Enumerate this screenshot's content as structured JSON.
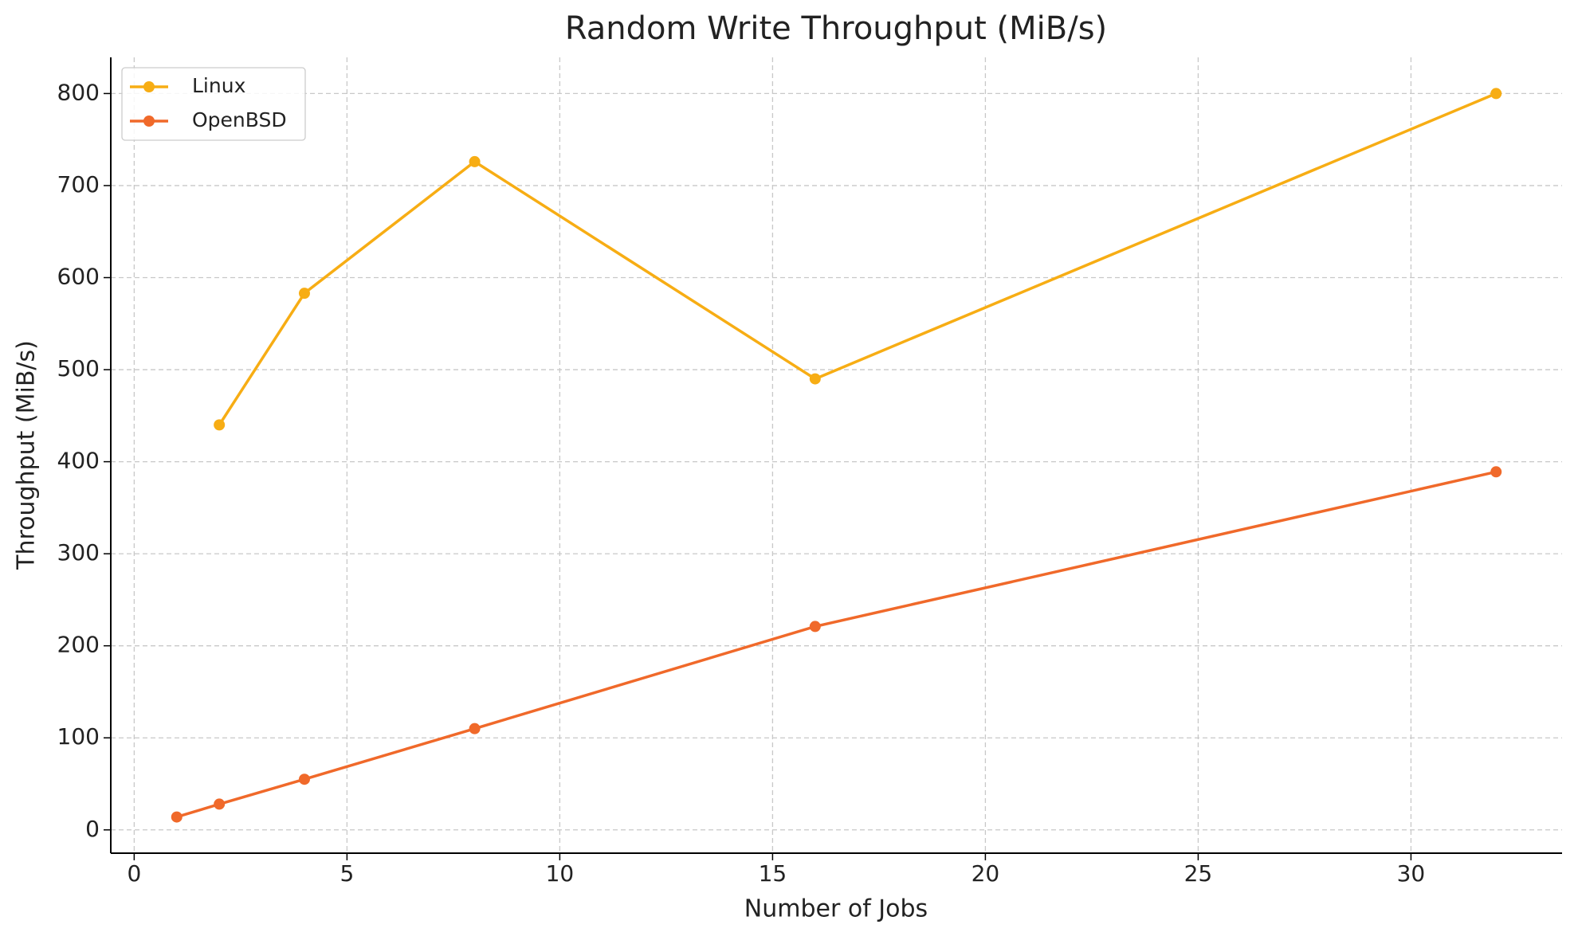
{
  "chart_data": {
    "type": "line",
    "title": "Random Write Throughput (MiB/s)",
    "x_label": "Number of Jobs",
    "y_label": "Throughput (MiB/s)",
    "x": [
      1,
      2,
      4,
      8,
      16,
      32
    ],
    "series": [
      {
        "name": "Linux",
        "color": "#f7ad14",
        "values": [
          null,
          440,
          583,
          726,
          490,
          800
        ]
      },
      {
        "name": "OpenBSD",
        "color": "#f0692a",
        "values": [
          14,
          28,
          55,
          110,
          221,
          389
        ]
      }
    ],
    "xlim": [
      -0.55,
      33.55
    ],
    "xticks": [
      0,
      5,
      10,
      15,
      20,
      25,
      30
    ],
    "ylim": [
      -25.3,
      839.3
    ],
    "yticks": [
      0,
      100,
      200,
      300,
      400,
      500,
      600,
      700,
      800
    ],
    "grid": true,
    "legend": "upper left"
  }
}
